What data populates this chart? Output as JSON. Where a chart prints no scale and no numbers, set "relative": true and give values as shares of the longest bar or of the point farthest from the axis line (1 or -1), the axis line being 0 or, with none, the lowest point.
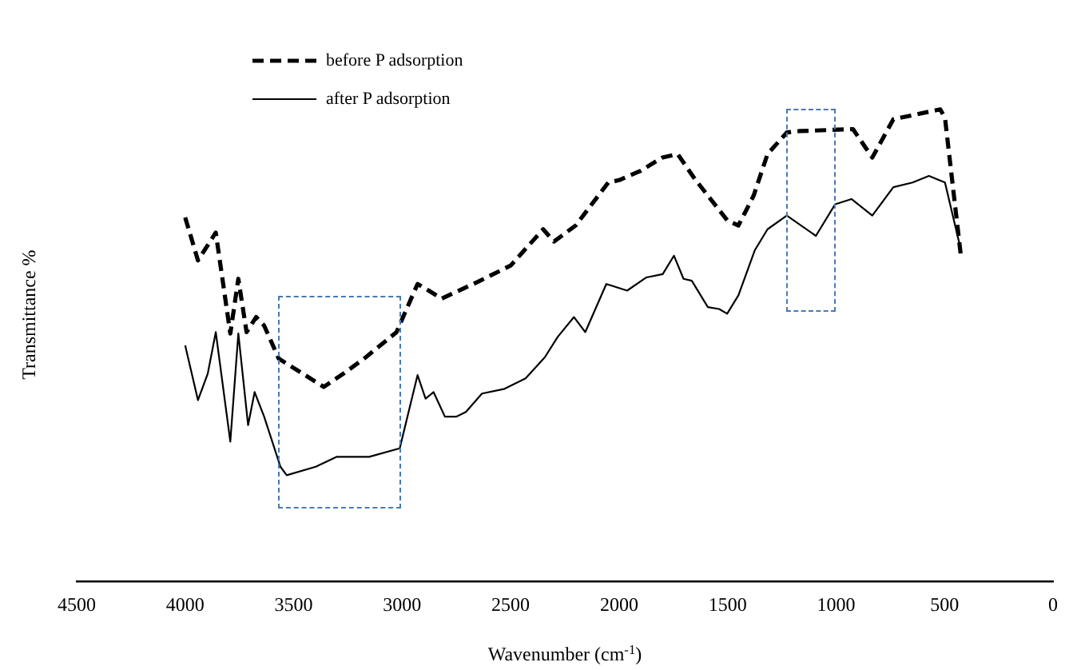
{
  "chart_data": {
    "type": "line",
    "relative": true,
    "xlabel": "Wavenumber (cm$^{-1}$)",
    "ylabel": "Transmittance %",
    "xlim": [
      4500,
      0
    ],
    "xticks": [
      4500,
      4000,
      3500,
      3000,
      2500,
      2000,
      1500,
      1000,
      500,
      0
    ],
    "legend": "top left",
    "grid": false,
    "marker": "none",
    "series": [
      {
        "name": "before P adsorption",
        "color": "#000000",
        "line_style": "dashed",
        "x": [
          4000,
          3941,
          3859,
          3792,
          3755,
          3717,
          3673,
          3636,
          3569,
          3361,
          3271,
          3167,
          3026,
          2929,
          2877,
          2818,
          2654,
          2500,
          2350,
          2300,
          2200,
          2050,
          2000,
          1900,
          1800,
          1730,
          1650,
          1500,
          1450,
          1380,
          1316,
          1227,
          1167,
          922,
          833,
          736,
          520,
          498,
          424
        ],
        "values": [
          0.771,
          0.68,
          0.739,
          0.525,
          0.641,
          0.528,
          0.56,
          0.542,
          0.472,
          0.412,
          0.44,
          0.475,
          0.528,
          0.63,
          0.616,
          0.599,
          0.634,
          0.669,
          0.746,
          0.72,
          0.754,
          0.845,
          0.85,
          0.87,
          0.898,
          0.905,
          0.852,
          0.764,
          0.754,
          0.817,
          0.905,
          0.951,
          0.954,
          0.958,
          0.898,
          0.979,
          1,
          0.982,
          0.687
        ]
      },
      {
        "name": "after P adsorption",
        "color": "#000000",
        "line_style": "solid",
        "x": [
          4000,
          3941,
          3896,
          3859,
          3792,
          3755,
          3710,
          3680,
          3636,
          3561,
          3532,
          3398,
          3301,
          3152,
          3011,
          2929,
          2892,
          2855,
          2803,
          2751,
          2706,
          2632,
          2528,
          2431,
          2342,
          2283,
          2208,
          2156,
          2059,
          1963,
          1874,
          1799,
          1747,
          1703,
          1665,
          1591,
          1539,
          1502,
          1450,
          1375,
          1316,
          1227,
          1093,
          1004,
          929,
          833,
          736,
          647,
          572,
          498,
          424
        ],
        "values": [
          0.5,
          0.384,
          0.44,
          0.528,
          0.296,
          0.525,
          0.331,
          0.401,
          0.349,
          0.243,
          0.225,
          0.243,
          0.264,
          0.264,
          0.282,
          0.437,
          0.387,
          0.401,
          0.349,
          0.349,
          0.359,
          0.398,
          0.408,
          0.43,
          0.475,
          0.518,
          0.56,
          0.528,
          0.63,
          0.616,
          0.644,
          0.651,
          0.69,
          0.641,
          0.637,
          0.581,
          0.577,
          0.567,
          0.606,
          0.701,
          0.746,
          0.775,
          0.732,
          0.799,
          0.81,
          0.775,
          0.835,
          0.845,
          0.859,
          0.845,
          0.701
        ]
      }
    ]
  }
}
